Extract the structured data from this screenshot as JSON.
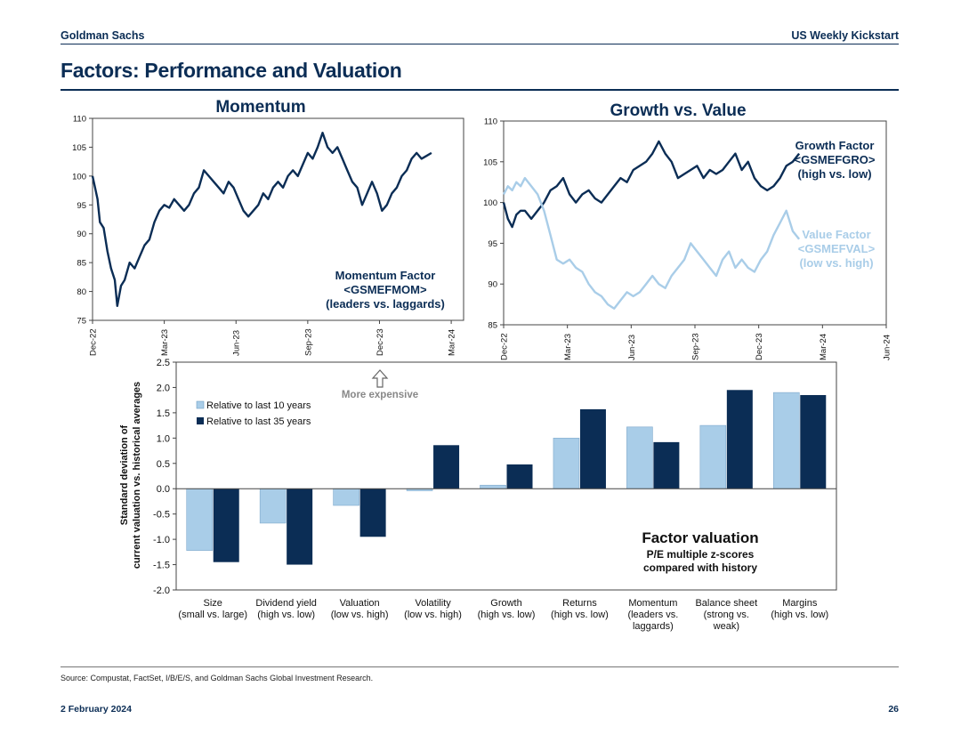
{
  "header": {
    "left": "Goldman Sachs",
    "right": "US Weekly Kickstart"
  },
  "page_title": "Factors: Performance and Valuation",
  "footer": {
    "source": "Source: Compustat, FactSet, I/B/E/S, and Goldman Sachs Global Investment Research.",
    "date": "2 February 2024",
    "page": "26"
  },
  "colors": {
    "navy": "#0b2d55",
    "light_blue": "#a9cde8",
    "axis": "#444444"
  },
  "chart_data": [
    {
      "type": "line",
      "title": "Momentum",
      "x_ticks": [
        "Dec-22",
        "Mar-23",
        "Jun-23",
        "Sep-23",
        "Dec-23",
        "Mar-24"
      ],
      "ylim": [
        75,
        110
      ],
      "y_ticks": [
        75,
        80,
        85,
        90,
        95,
        100,
        105,
        110
      ],
      "annotation": [
        "Momentum Factor",
        "<GSMEFMOM>",
        "(leaders vs. laggards)"
      ],
      "series": [
        {
          "name": "Momentum Factor <GSMEFMOM> (leaders vs. laggards)",
          "x": [
            0,
            0.1,
            0.2,
            0.3,
            0.45,
            0.6,
            0.75,
            0.9,
            1.0,
            1.15,
            1.3,
            1.5,
            1.7,
            1.9,
            2.1,
            2.3,
            2.5,
            2.7,
            2.9,
            3.1,
            3.3,
            3.5,
            3.7,
            3.9,
            4.1,
            4.3,
            4.5,
            4.7,
            4.9,
            5.1,
            5.3,
            5.5,
            5.7,
            5.9,
            6.1,
            6.3,
            6.5,
            6.7,
            6.9,
            7.1,
            7.3,
            7.5,
            7.7,
            7.9,
            8.1,
            8.3,
            8.5,
            8.7,
            8.9,
            9.1,
            9.3,
            9.5,
            9.7,
            9.9,
            10.1,
            10.3,
            10.5,
            10.7,
            10.9,
            11.1,
            11.3,
            11.5,
            11.7,
            11.9,
            12.1,
            12.3,
            12.5,
            12.7,
            12.9,
            13.1,
            13.3,
            13.5,
            13.7
          ],
          "y": [
            100,
            98,
            96,
            92,
            91,
            87,
            84,
            82,
            77.5,
            81,
            82,
            85,
            84,
            86,
            88,
            89,
            92,
            94,
            95,
            94.5,
            96,
            95,
            94,
            95,
            97,
            98,
            101,
            100,
            99,
            98,
            97,
            99,
            98,
            96,
            94,
            93,
            94,
            95,
            97,
            96,
            98,
            99,
            98,
            100,
            101,
            100,
            102,
            104,
            103,
            105,
            107.5,
            105,
            104,
            105,
            103,
            101,
            99,
            98,
            95,
            97,
            99,
            97,
            94,
            95,
            97,
            98,
            100,
            101,
            103,
            104,
            103,
            103.5,
            104
          ]
        }
      ]
    },
    {
      "type": "line",
      "title": "Growth vs. Value",
      "x_ticks": [
        "Dec-22",
        "Mar-23",
        "Jun-23",
        "Sep-23",
        "Dec-23",
        "Mar-24",
        "Jun-24"
      ],
      "ylim": [
        85,
        110
      ],
      "y_ticks": [
        85,
        90,
        95,
        100,
        105,
        110
      ],
      "series": [
        {
          "name": "Growth Factor <GSMEFGRO> (high vs. low)",
          "label": [
            "Growth Factor",
            "<GSMEFGRO>",
            "(high vs. low)"
          ],
          "x": [
            0,
            0.2,
            0.4,
            0.6,
            0.8,
            1.0,
            1.3,
            1.6,
            1.9,
            2.2,
            2.5,
            2.8,
            3.1,
            3.4,
            3.7,
            4.0,
            4.3,
            4.6,
            4.9,
            5.2,
            5.5,
            5.8,
            6.1,
            6.4,
            6.7,
            7.0,
            7.3,
            7.6,
            7.9,
            8.2,
            8.5,
            8.8,
            9.1,
            9.4,
            9.7,
            10.0,
            10.3,
            10.6,
            10.9,
            11.2,
            11.5,
            11.8,
            12.1,
            12.4,
            12.7,
            13.0,
            13.3,
            13.6,
            13.9
          ],
          "y": [
            100,
            98,
            97,
            98.5,
            99,
            99,
            98,
            99,
            100,
            101.5,
            102,
            103,
            101,
            100,
            101,
            101.5,
            100.5,
            100,
            101,
            102,
            103,
            102.5,
            104,
            104.5,
            105,
            106,
            107.5,
            106,
            105,
            103,
            103.5,
            104,
            104.5,
            103,
            104,
            103.5,
            104,
            105,
            106,
            104,
            105,
            103,
            102,
            101.5,
            102,
            103,
            104.5,
            105,
            106
          ]
        },
        {
          "name": "Value Factor <GSMEFVAL> (low vs. high)",
          "label": [
            "Value Factor",
            "<GSMEFVAL>",
            "(low vs. high)"
          ],
          "x": [
            0,
            0.2,
            0.4,
            0.6,
            0.8,
            1.0,
            1.3,
            1.6,
            1.9,
            2.2,
            2.5,
            2.8,
            3.1,
            3.4,
            3.7,
            4.0,
            4.3,
            4.6,
            4.9,
            5.2,
            5.5,
            5.8,
            6.1,
            6.4,
            6.7,
            7.0,
            7.3,
            7.6,
            7.9,
            8.2,
            8.5,
            8.8,
            9.1,
            9.4,
            9.7,
            10.0,
            10.3,
            10.6,
            10.9,
            11.2,
            11.5,
            11.8,
            12.1,
            12.4,
            12.7,
            13.0,
            13.3,
            13.6,
            13.9
          ],
          "y": [
            101,
            102,
            101.5,
            102.5,
            102,
            103,
            102,
            101,
            99,
            96,
            93,
            92.5,
            93,
            92,
            91.5,
            90,
            89,
            88.5,
            87.5,
            87,
            88,
            89,
            88.5,
            89,
            90,
            91,
            90,
            89.5,
            91,
            92,
            93,
            95,
            94,
            93,
            92,
            91,
            93,
            94,
            92,
            93,
            92,
            91.5,
            93,
            94,
            96,
            97.5,
            99,
            96.5,
            95.5
          ]
        }
      ]
    },
    {
      "type": "bar",
      "title": "Factor valuation",
      "subtitle": [
        "P/E multiple z-scores",
        "compared with history"
      ],
      "ylabel": [
        "Standard deviation of",
        "current valuation vs.  historical averages"
      ],
      "ylim": [
        -2.0,
        2.5
      ],
      "y_ticks": [
        "-2.0",
        "-1.5",
        "-1.0",
        "-0.5",
        "0.0",
        "0.5",
        "1.0",
        "1.5",
        "2.0",
        "2.5"
      ],
      "annotation": "More expensive",
      "categories": [
        [
          "Size",
          "(small vs. large)"
        ],
        [
          "Dividend yield",
          "(high vs. low)"
        ],
        [
          "Valuation",
          "(low vs. high)"
        ],
        [
          "Volatility",
          "(low vs. high)"
        ],
        [
          "Growth",
          "(high vs. low)"
        ],
        [
          "Returns",
          "(high vs. low)"
        ],
        [
          "Momentum",
          "(leaders vs.",
          "laggards)"
        ],
        [
          "Balance sheet",
          "(strong vs.",
          "weak)"
        ],
        [
          "Margins",
          "(high vs. low)"
        ]
      ],
      "series": [
        {
          "name": "Relative to last 10 years",
          "color": "#a9cde8",
          "values": [
            -1.22,
            -0.68,
            -0.33,
            -0.04,
            0.07,
            1.0,
            1.22,
            1.25,
            1.9
          ]
        },
        {
          "name": "Relative to last 35 years",
          "color": "#0b2d55",
          "values": [
            -1.45,
            -1.5,
            -0.95,
            0.86,
            0.48,
            1.57,
            0.92,
            1.95,
            1.85
          ]
        }
      ]
    }
  ]
}
